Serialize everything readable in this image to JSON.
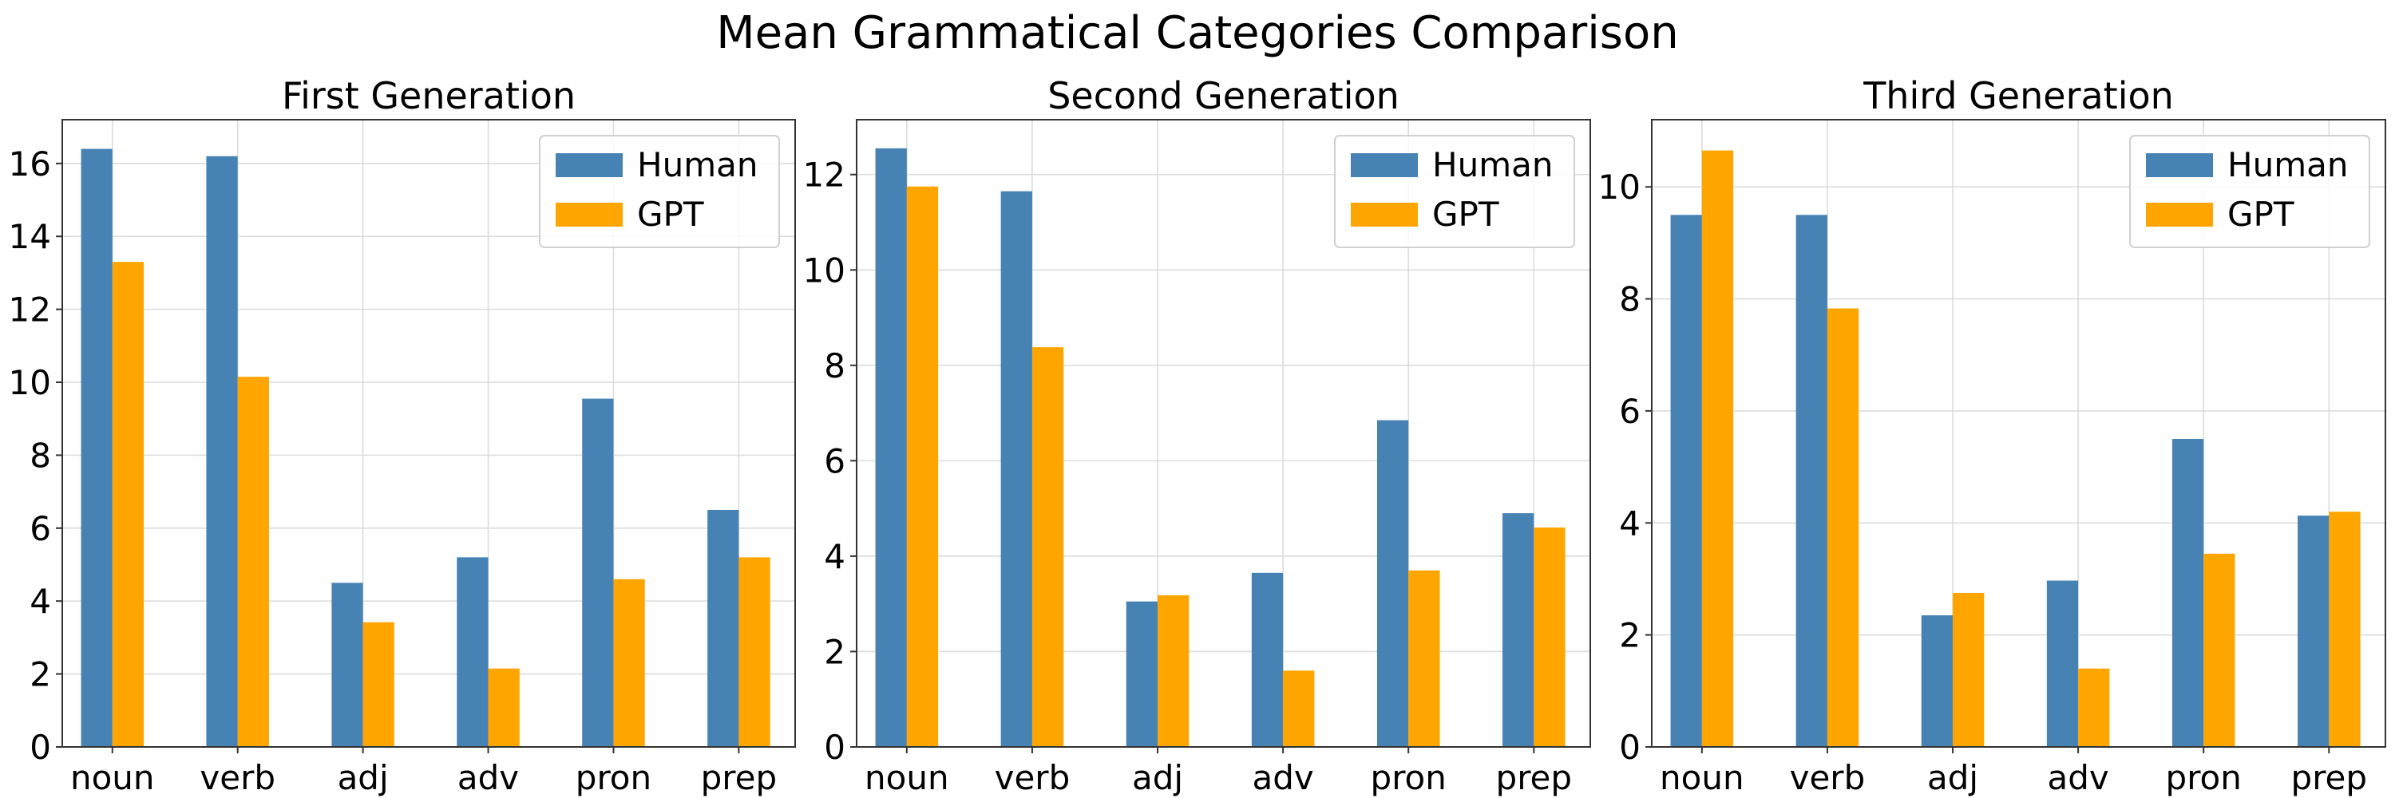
{
  "suptitle": "Mean Grammatical Categories Comparison",
  "colors": {
    "human": "#4682b4",
    "gpt": "#ffa500"
  },
  "chart_data": [
    {
      "type": "bar",
      "title": "First Generation",
      "categories": [
        "noun",
        "verb",
        "adj",
        "adv",
        "pron",
        "prep"
      ],
      "series": [
        {
          "name": "Human",
          "values": [
            16.4,
            16.2,
            4.5,
            5.2,
            9.55,
            6.5
          ]
        },
        {
          "name": "GPT",
          "values": [
            13.3,
            10.15,
            3.42,
            2.15,
            4.6,
            5.2
          ]
        }
      ],
      "ylim": [
        0,
        17.2
      ],
      "yticks": [
        0,
        2,
        4,
        6,
        8,
        10,
        12,
        14,
        16
      ],
      "grid": true,
      "legend": "top-right"
    },
    {
      "type": "bar",
      "title": "Second Generation",
      "categories": [
        "noun",
        "verb",
        "adj",
        "adv",
        "pron",
        "prep"
      ],
      "series": [
        {
          "name": "Human",
          "values": [
            12.55,
            11.65,
            3.05,
            3.65,
            6.85,
            4.9
          ]
        },
        {
          "name": "GPT",
          "values": [
            11.75,
            8.38,
            3.18,
            1.6,
            3.7,
            4.6
          ]
        }
      ],
      "ylim": [
        0,
        13.15
      ],
      "yticks": [
        0,
        2,
        4,
        6,
        8,
        10,
        12
      ],
      "grid": true,
      "legend": "top-right"
    },
    {
      "type": "bar",
      "title": "Third Generation",
      "categories": [
        "noun",
        "verb",
        "adj",
        "adv",
        "pron",
        "prep"
      ],
      "series": [
        {
          "name": "Human",
          "values": [
            9.5,
            9.5,
            2.35,
            2.97,
            5.5,
            4.13
          ]
        },
        {
          "name": "GPT",
          "values": [
            10.65,
            7.83,
            2.75,
            1.4,
            3.45,
            4.2
          ]
        }
      ],
      "ylim": [
        0,
        11.2
      ],
      "yticks": [
        0,
        2,
        4,
        6,
        8,
        10
      ],
      "grid": true,
      "legend": "top-right"
    }
  ]
}
